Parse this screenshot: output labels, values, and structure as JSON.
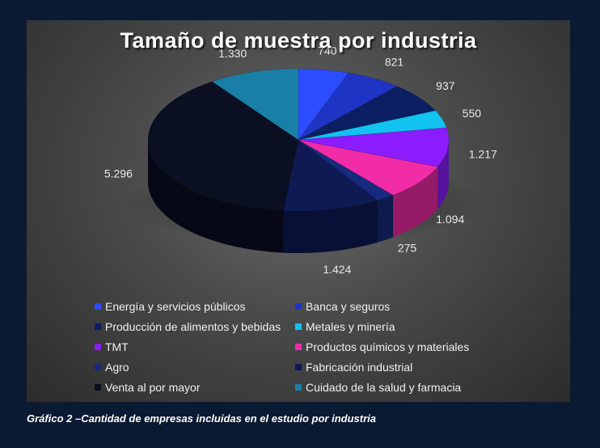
{
  "caption": "Gráfico 2 –Cantidad de empresas incluidas en el estudio por industria",
  "chart_data": {
    "type": "pie",
    "style": "3d-pie",
    "title": "Tamaño de muestra por industria",
    "legend_position": "bottom",
    "categories": [
      "Energía y servicios públicos",
      "Banca y seguros",
      "Producción de alimentos y bebidas",
      "Metales y minería",
      "TMT",
      "Productos químicos y materiales",
      "Agro",
      "Fabricación industrial",
      "Venta al por mayor",
      "Cuidado de la salud y farmacia"
    ],
    "values": [
      740,
      821,
      937,
      550,
      1217,
      1094,
      275,
      1424,
      5296,
      1330
    ],
    "value_labels": [
      "740",
      "821",
      "937",
      "550",
      "1.217",
      "1.094",
      "275",
      "1.424",
      "5.296",
      "1.330"
    ],
    "colors": [
      "#2b4cff",
      "#1e34c4",
      "#0c1f62",
      "#12c2f0",
      "#8a1cff",
      "#f22ca6",
      "#162a7e",
      "#0f1a55",
      "#0a0f22",
      "#1a7fa6"
    ]
  }
}
